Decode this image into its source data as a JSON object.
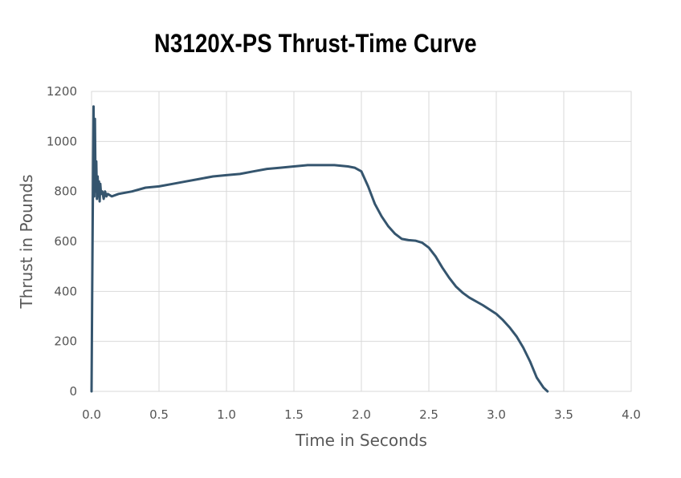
{
  "chart_data": {
    "type": "line",
    "title": "N3120X-PS Thrust-Time Curve",
    "xlabel": "Time in Seconds",
    "ylabel": "Thrust in Pounds",
    "xlim": [
      0,
      4
    ],
    "ylim": [
      0,
      1200
    ],
    "x_ticks": [
      "0.0",
      "0.5",
      "1.0",
      "1.5",
      "2.0",
      "2.5",
      "3.0",
      "3.5",
      "4.0"
    ],
    "y_ticks": [
      "0",
      "200",
      "400",
      "600",
      "800",
      "1000",
      "1200"
    ],
    "grid": true,
    "line_color": "#35556e",
    "series": [
      {
        "x": [
          0.0,
          0.005,
          0.01,
          0.015,
          0.02,
          0.025,
          0.03,
          0.035,
          0.04,
          0.045,
          0.05,
          0.055,
          0.06,
          0.065,
          0.07,
          0.08,
          0.09,
          0.1,
          0.11,
          0.12,
          0.15,
          0.2,
          0.3,
          0.4,
          0.5,
          0.6,
          0.7,
          0.8,
          0.9,
          1.0,
          1.1,
          1.2,
          1.3,
          1.4,
          1.5,
          1.6,
          1.7,
          1.8,
          1.9,
          1.95,
          2.0,
          2.05,
          2.1,
          2.15,
          2.2,
          2.25,
          2.3,
          2.35,
          2.4,
          2.45,
          2.5,
          2.55,
          2.6,
          2.65,
          2.7,
          2.75,
          2.8,
          2.9,
          3.0,
          3.05,
          3.1,
          3.15,
          3.2,
          3.25,
          3.3,
          3.35,
          3.38
        ],
        "y": [
          0,
          400,
          800,
          1140,
          780,
          1090,
          800,
          920,
          770,
          860,
          780,
          840,
          760,
          830,
          790,
          800,
          770,
          800,
          780,
          790,
          780,
          790,
          800,
          815,
          820,
          830,
          840,
          850,
          860,
          865,
          870,
          880,
          890,
          895,
          900,
          905,
          905,
          905,
          900,
          895,
          880,
          820,
          750,
          700,
          660,
          630,
          610,
          605,
          603,
          595,
          575,
          540,
          495,
          455,
          420,
          395,
          375,
          345,
          310,
          285,
          255,
          220,
          175,
          120,
          55,
          15,
          0
        ]
      }
    ]
  }
}
